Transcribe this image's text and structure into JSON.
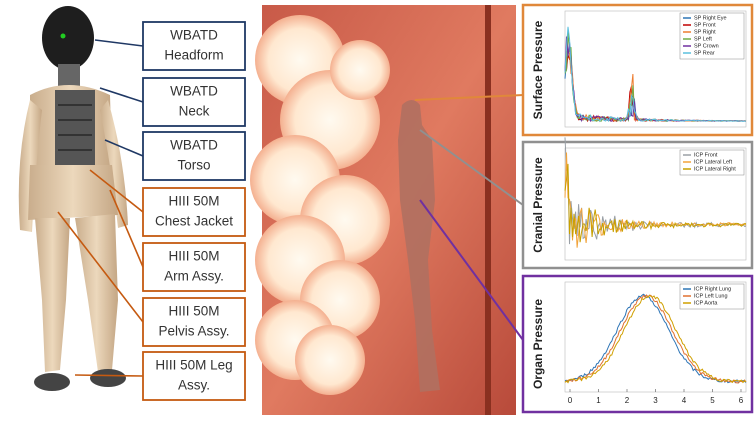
{
  "labels": [
    {
      "line1": "WBATD",
      "line2": "Headform"
    },
    {
      "line1": "WBATD",
      "line2": "Neck"
    },
    {
      "line1": "WBATD",
      "line2": "Torso"
    },
    {
      "line1": "HIII 50M",
      "line2": "Chest Jacket"
    },
    {
      "line1": "HIII 50M",
      "line2": "Arm Assy."
    },
    {
      "line1": "HIII 50M",
      "line2": "Pelvis Assy."
    },
    {
      "line1": "HIII 50M Leg",
      "line2": "Assy."
    }
  ],
  "panels": [
    {
      "title": "Surface Pressure",
      "legend": [
        "SP Right Eye",
        "SP Front",
        "SP Right",
        "SP Left",
        "SP Crown",
        "SP Rear"
      ]
    },
    {
      "title": "Cranial Pressure",
      "legend": [
        "ICP Front",
        "ICP Lateral Left",
        "ICP Lateral Right"
      ]
    },
    {
      "title": "Organ Pressure",
      "legend": [
        "ICP Right Lung",
        "ICP Left Lung",
        "ICP Aorta"
      ]
    }
  ],
  "x_ticks": [
    0,
    1,
    2,
    3,
    4,
    5,
    6
  ]
}
